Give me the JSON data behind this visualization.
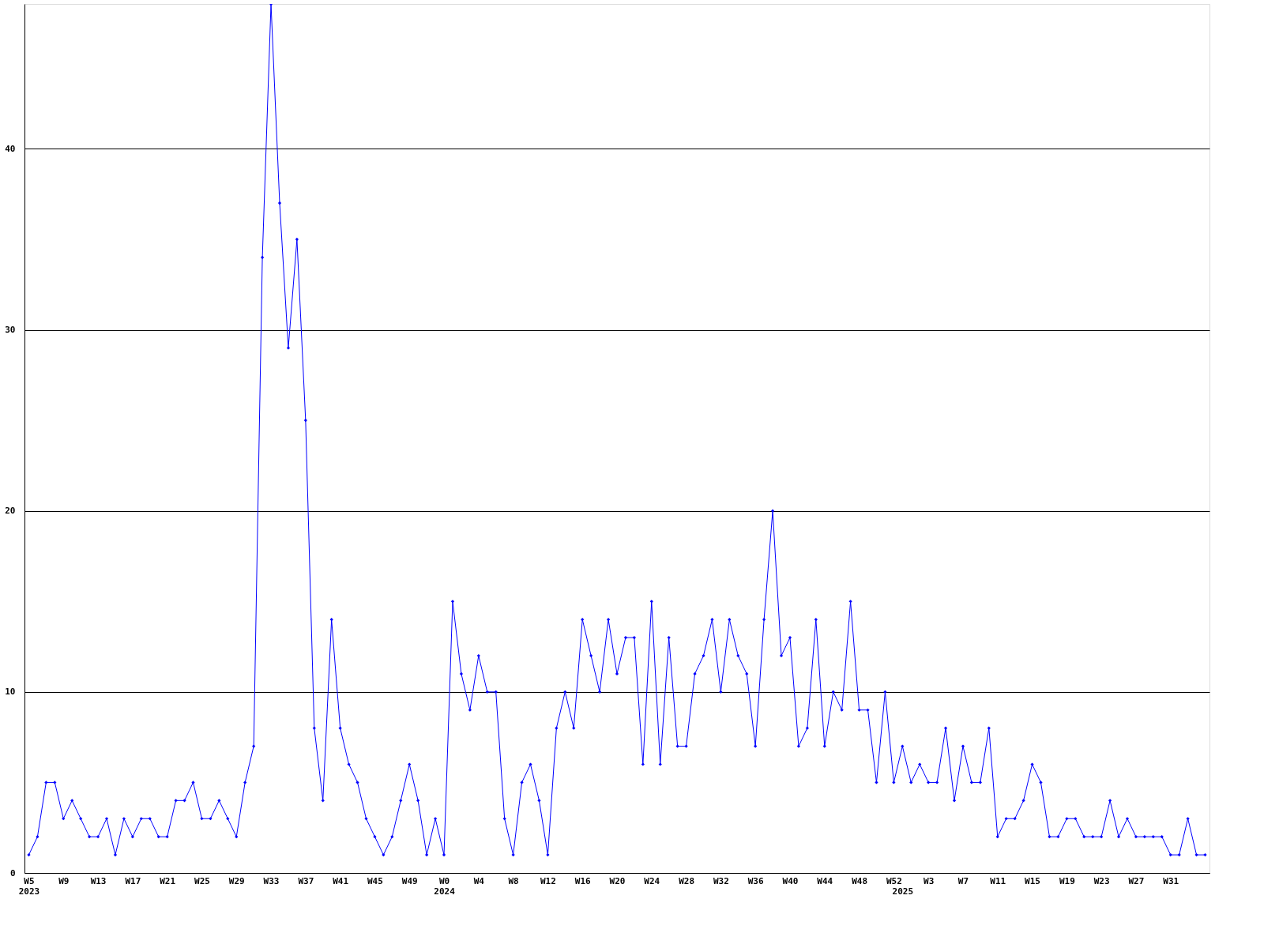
{
  "chart_data": {
    "type": "line",
    "categories": [
      "W5\n2023",
      null,
      null,
      null,
      "W9",
      null,
      null,
      null,
      "W13",
      null,
      null,
      null,
      "W17",
      null,
      null,
      null,
      "W21",
      null,
      null,
      null,
      "W25",
      null,
      null,
      null,
      "W29",
      null,
      null,
      null,
      "W33",
      null,
      null,
      null,
      "W37",
      null,
      null,
      null,
      "W41",
      null,
      null,
      null,
      "W45",
      null,
      null,
      null,
      "W49",
      null,
      null,
      null,
      "W0\n2024",
      null,
      null,
      null,
      "W4",
      null,
      null,
      null,
      "W8",
      null,
      null,
      null,
      "W12",
      null,
      null,
      null,
      "W16",
      null,
      null,
      null,
      "W20",
      null,
      null,
      null,
      "W24",
      null,
      null,
      null,
      "W28",
      null,
      null,
      null,
      "W32",
      null,
      null,
      null,
      "W36",
      null,
      null,
      null,
      "W40",
      null,
      null,
      null,
      "W44",
      null,
      null,
      null,
      "W48",
      null,
      null,
      null,
      "W52",
      "\n2025",
      null,
      null,
      "W3",
      null,
      null,
      null,
      "W7",
      null,
      null,
      null,
      "W11",
      null,
      null,
      null,
      "W15",
      null,
      null,
      null,
      "W19",
      null,
      null,
      null,
      "W23",
      null,
      null,
      null,
      "W27",
      null,
      null,
      null,
      "W31",
      null,
      null,
      null,
      null
    ],
    "series": [
      {
        "color": "#0000ff",
        "values": [
          1,
          2,
          5,
          5,
          3,
          4,
          3,
          2,
          2,
          3,
          1,
          3,
          2,
          3,
          3,
          2,
          2,
          4,
          4,
          5,
          3,
          3,
          4,
          3,
          2,
          5,
          7,
          34,
          48,
          37,
          29,
          35,
          25,
          8,
          4,
          14,
          8,
          6,
          5,
          3,
          2,
          1,
          2,
          4,
          6,
          4,
          1,
          3,
          1,
          15,
          11,
          9,
          12,
          10,
          10,
          3,
          1,
          5,
          6,
          4,
          1,
          8,
          10,
          8,
          14,
          12,
          10,
          14,
          11,
          13,
          13,
          6,
          15,
          6,
          13,
          7,
          7,
          11,
          12,
          14,
          10,
          14,
          12,
          11,
          7,
          14,
          20,
          12,
          13,
          7,
          8,
          14,
          7,
          10,
          9,
          15,
          9,
          9,
          5,
          10,
          5,
          7,
          5,
          6,
          5,
          5,
          8,
          4,
          7,
          5,
          5,
          8,
          2,
          3,
          3,
          4,
          6,
          5,
          2,
          2,
          3,
          3,
          2,
          2,
          2,
          4,
          2,
          3,
          2,
          2,
          2,
          2,
          1,
          1,
          3,
          1,
          1
        ]
      }
    ],
    "ylim": [
      0,
      48
    ],
    "yticks": [
      0,
      10,
      20,
      30,
      40
    ],
    "grid": "y",
    "marker": "diamond",
    "line_style": "solid",
    "legend": false
  }
}
